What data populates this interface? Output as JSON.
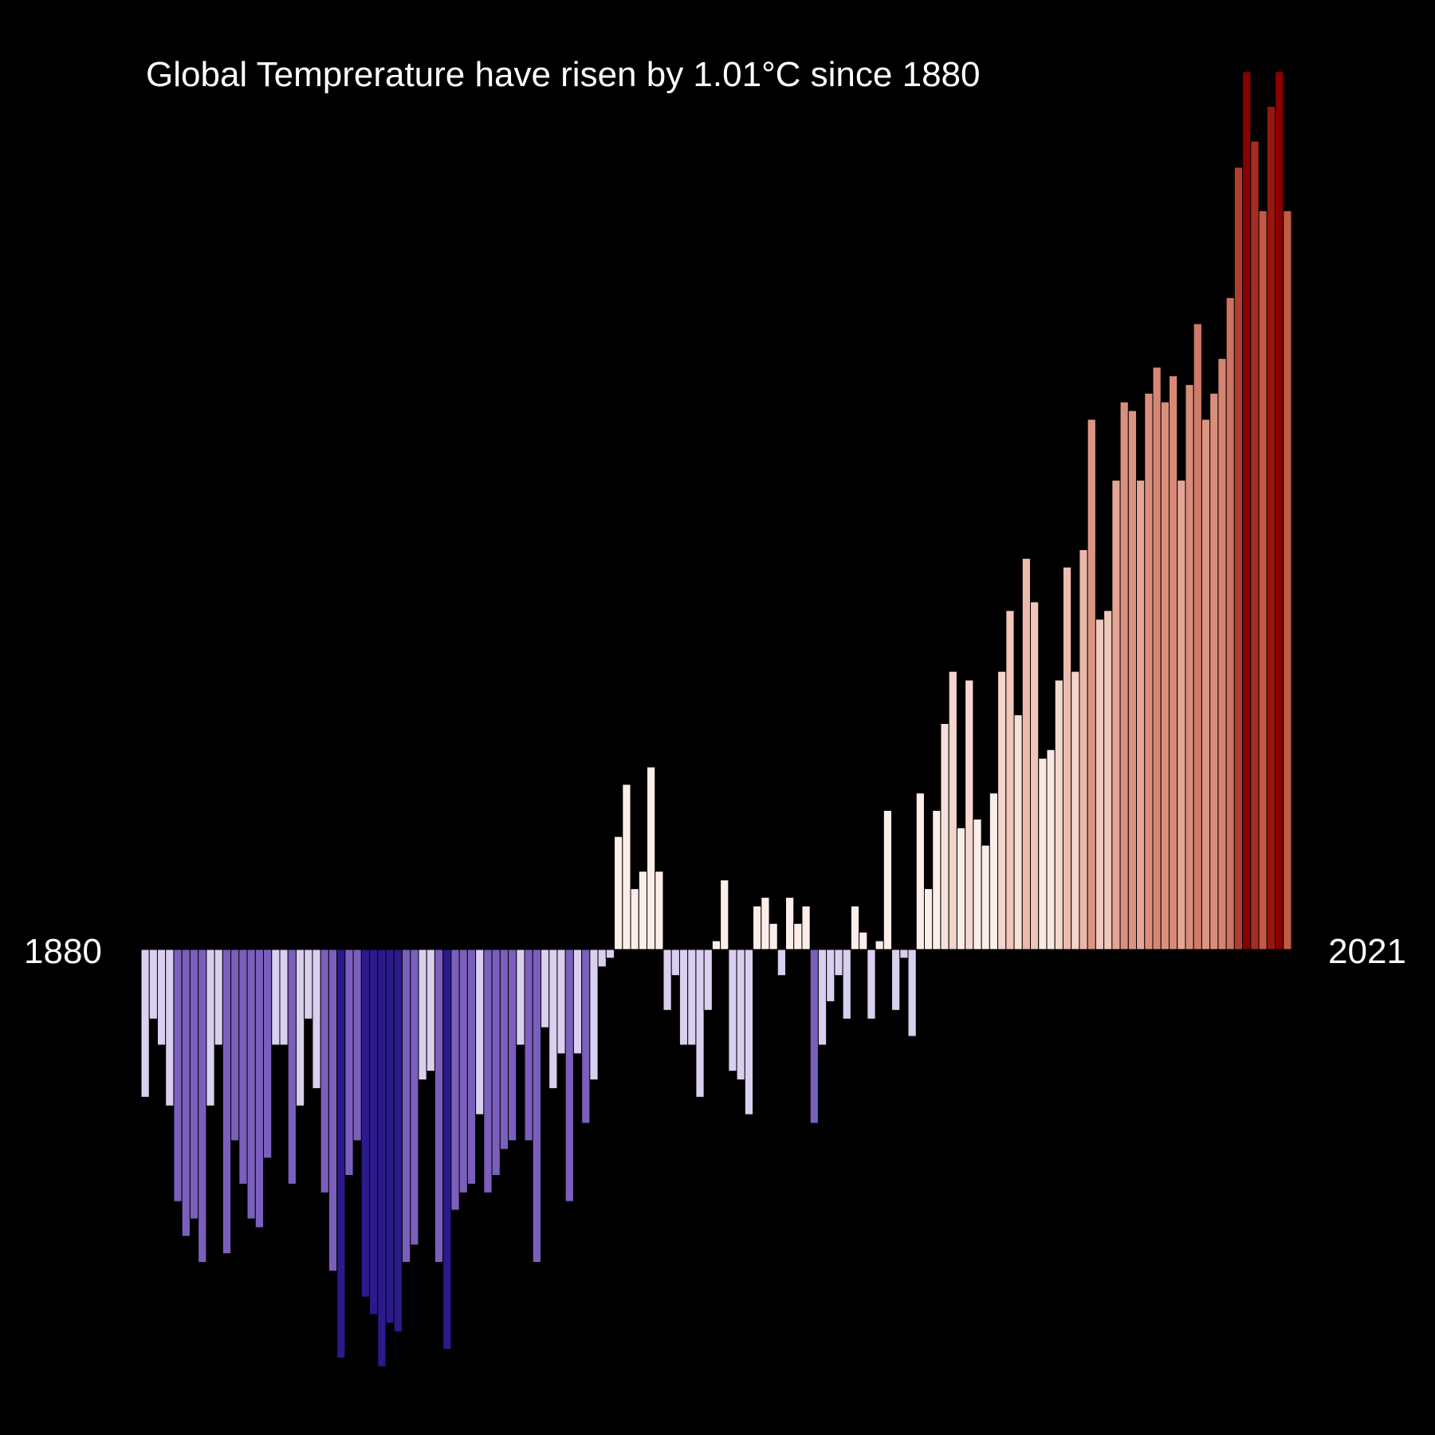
{
  "chart_data": {
    "type": "bar",
    "title": "Global Temprerature have risen by 1.01°C since 1880",
    "title_text": "Global Temprerature have risen by 1.01°C since 1880",
    "start_label": "1880",
    "end_label": "2021",
    "unit": "°C",
    "ylim": [
      -0.5,
      1.02
    ],
    "grid": false,
    "legend": "none",
    "colors": {
      "background": "#000000",
      "cold_strong": "#2a1a8c",
      "cold_mid": "#7b5fbd",
      "cold_light": "#d9cfee",
      "neutral": "#fbeee9",
      "warm_light": "#e8b0a0",
      "warm_mid": "#c25a45",
      "warm_strong": "#8b0000"
    },
    "values": [
      -0.17,
      -0.08,
      -0.11,
      -0.18,
      -0.29,
      -0.33,
      -0.31,
      -0.36,
      -0.18,
      -0.11,
      -0.35,
      -0.22,
      -0.27,
      -0.31,
      -0.32,
      -0.24,
      -0.11,
      -0.11,
      -0.27,
      -0.18,
      -0.08,
      -0.16,
      -0.28,
      -0.37,
      -0.47,
      -0.26,
      -0.22,
      -0.4,
      -0.42,
      -0.48,
      -0.43,
      -0.44,
      -0.36,
      -0.34,
      -0.15,
      -0.14,
      -0.36,
      -0.46,
      -0.3,
      -0.28,
      -0.27,
      -0.19,
      -0.28,
      -0.26,
      -0.23,
      -0.22,
      -0.11,
      -0.22,
      -0.36,
      -0.09,
      -0.16,
      -0.12,
      -0.29,
      -0.12,
      -0.2,
      -0.15,
      -0.02,
      -0.01,
      0.13,
      0.19,
      0.07,
      0.09,
      0.21,
      0.09,
      -0.07,
      -0.03,
      -0.11,
      -0.11,
      -0.17,
      -0.07,
      0.01,
      0.08,
      -0.14,
      -0.15,
      -0.19,
      0.05,
      0.06,
      0.03,
      -0.03,
      0.06,
      0.03,
      0.05,
      -0.2,
      -0.11,
      -0.06,
      -0.03,
      -0.08,
      0.05,
      0.02,
      -0.08,
      0.01,
      0.16,
      -0.07,
      -0.01,
      -0.1,
      0.18,
      0.07,
      0.16,
      0.26,
      0.32,
      0.14,
      0.31,
      0.15,
      0.12,
      0.18,
      0.32,
      0.39,
      0.27,
      0.45,
      0.4,
      0.22,
      0.23,
      0.31,
      0.44,
      0.32,
      0.46,
      0.61,
      0.38,
      0.39,
      0.54,
      0.63,
      0.62,
      0.54,
      0.64,
      0.67,
      0.63,
      0.66,
      0.54,
      0.65,
      0.72,
      0.61,
      0.64,
      0.68,
      0.75,
      0.9,
      1.01,
      0.93,
      0.85,
      0.97,
      1.01,
      0.85
    ]
  }
}
